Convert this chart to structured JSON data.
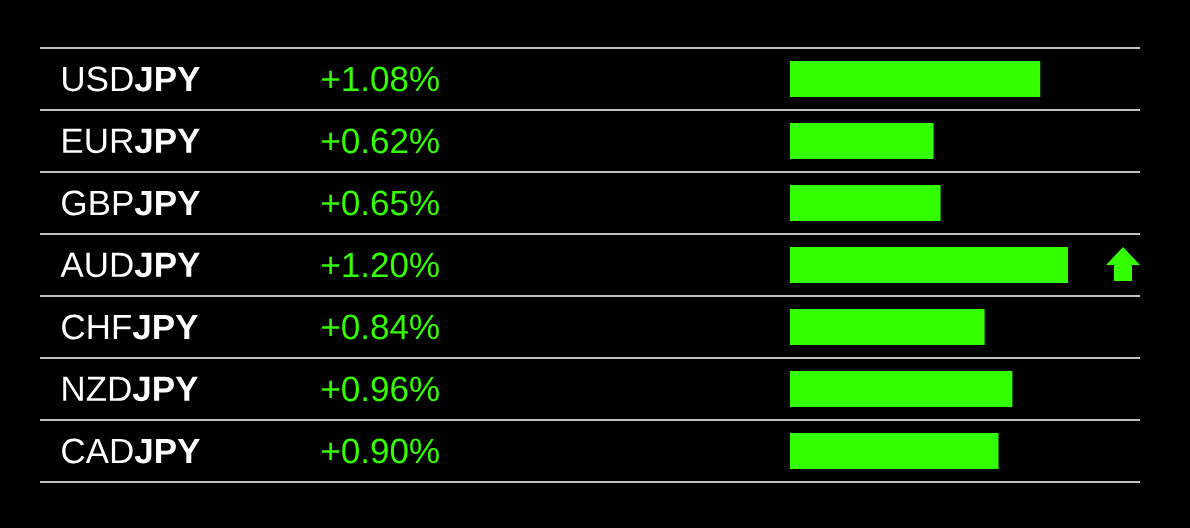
{
  "chart_data": {
    "type": "bar",
    "orientation": "horizontal",
    "categories": [
      "USD**JPY**",
      "EUR**JPY**",
      "GBP**JPY**",
      "AUD**JPY**",
      "CHF**JPY**",
      "NZD**JPY**",
      "CAD**JPY**"
    ],
    "values": [
      1.08,
      0.62,
      0.65,
      1.2,
      0.84,
      0.96,
      0.9
    ],
    "value_labels": [
      "+1.08%",
      "+0.62%",
      "+0.65%",
      "+1.20%",
      "+0.84%",
      "+0.96%",
      "+0.90%"
    ],
    "color": "#33ff00"
  }
}
